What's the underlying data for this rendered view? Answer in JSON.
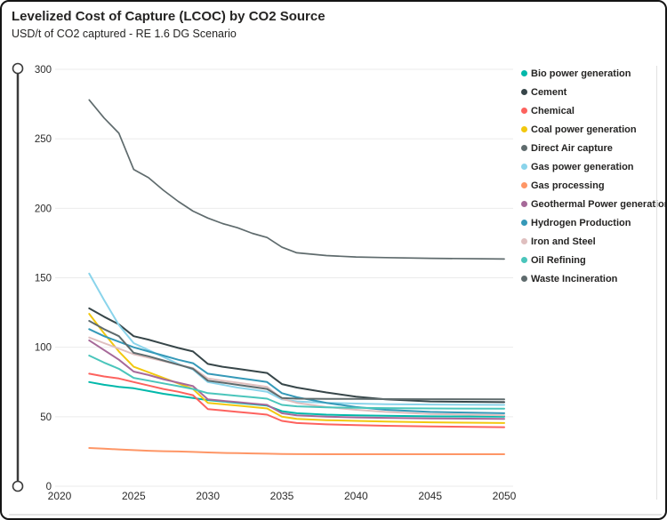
{
  "header": {
    "title": "Levelized Cost of Capture (LCOC) by CO2 Source",
    "subtitle": "USD/t of CO2 captured - RE 1.6 DG Scenario"
  },
  "chart_data": {
    "type": "line",
    "title": "Levelized Cost of Capture (LCOC) by CO2 Source",
    "subtitle": "USD/t of CO2 captured - RE 1.6 DG Scenario",
    "xlabel": "",
    "ylabel": "USD/t of CO2 captured",
    "xlim": [
      2020,
      2050
    ],
    "ylim": [
      0,
      300
    ],
    "x_ticks": [
      2020,
      2025,
      2030,
      2035,
      2040,
      2045,
      2050
    ],
    "y_ticks": [
      0,
      50,
      100,
      150,
      200,
      250,
      300
    ],
    "grid": "horizontal",
    "legend_position": "right",
    "x": [
      2022,
      2023,
      2024,
      2025,
      2026,
      2027,
      2028,
      2029,
      2030,
      2031,
      2032,
      2033,
      2034,
      2035,
      2036,
      2038,
      2040,
      2042,
      2045,
      2050
    ],
    "series": [
      {
        "name": "Bio power generation",
        "color": "#01B8AA",
        "values": [
          75,
          73,
          71.5,
          70.5,
          68.5,
          66.5,
          65,
          63.5,
          62,
          61,
          60,
          59,
          58,
          54,
          52.5,
          51.5,
          51,
          50.7,
          50.3,
          50
        ]
      },
      {
        "name": "Cement",
        "color": "#374649",
        "values": [
          128,
          122,
          116.5,
          108,
          105.5,
          102.5,
          99.5,
          97,
          88,
          86,
          84.5,
          83,
          81.5,
          73.5,
          71,
          67.5,
          64.5,
          62.5,
          61,
          60.5
        ]
      },
      {
        "name": "Chemical",
        "color": "#FD625E",
        "values": [
          81,
          79,
          77.5,
          75,
          72.5,
          70,
          68,
          65.5,
          55.5,
          54.5,
          53.5,
          52.5,
          51.5,
          47,
          45.5,
          44.5,
          44,
          43.5,
          43,
          42.5
        ]
      },
      {
        "name": "Coal power generation",
        "color": "#F2C80F",
        "values": [
          124,
          110,
          97,
          86,
          82,
          78,
          74,
          70,
          60,
          59,
          58,
          57,
          56,
          50,
          48.5,
          47.5,
          47,
          46.5,
          46,
          45.5
        ]
      },
      {
        "name": "Direct Air capture",
        "color": "#5F6B6D",
        "values": [
          278,
          265,
          254,
          228,
          222,
          213,
          205,
          198,
          193,
          189,
          186,
          182,
          179,
          172,
          168,
          166,
          165,
          164.5,
          164,
          163.5
        ]
      },
      {
        "name": "Gas power generation",
        "color": "#8AD4EB",
        "values": [
          153,
          134,
          116,
          103,
          98,
          93,
          88,
          84,
          75,
          73,
          71,
          69.5,
          68,
          62.5,
          61,
          60,
          59.5,
          59,
          58.8,
          58.5
        ]
      },
      {
        "name": "Gas processing",
        "color": "#FE9666",
        "values": [
          27.5,
          27,
          26.5,
          26,
          25.5,
          25.2,
          25,
          24.7,
          24.3,
          24,
          23.8,
          23.6,
          23.4,
          23.2,
          23.1,
          23,
          23,
          23,
          23,
          23
        ]
      },
      {
        "name": "Geothermal Power generation",
        "color": "#A66999",
        "values": [
          105,
          98,
          91,
          82.5,
          80,
          77,
          74.5,
          72,
          62.5,
          61.5,
          60.5,
          59.5,
          58.5,
          52.5,
          51,
          50,
          49.5,
          49.2,
          48.8,
          48.5
        ]
      },
      {
        "name": "Hydrogen Production",
        "color": "#3599B8",
        "values": [
          113,
          108,
          104,
          100,
          97,
          94,
          91,
          88.5,
          81,
          79.5,
          78,
          76.5,
          75,
          67,
          64,
          60,
          57,
          55,
          53.5,
          52.5
        ]
      },
      {
        "name": "Iron and Steel",
        "color": "#DFBFBF",
        "values": [
          107,
          103,
          99,
          95,
          92.5,
          90,
          87.5,
          85,
          77.5,
          76,
          74.5,
          73,
          71.5,
          63,
          60,
          57,
          55,
          53.5,
          52,
          51
        ]
      },
      {
        "name": "Oil Refining",
        "color": "#4AC5BB",
        "values": [
          94,
          89,
          84.5,
          78,
          76,
          74,
          72,
          70,
          67,
          66,
          65,
          64,
          63,
          58.5,
          57.5,
          56.8,
          56.4,
          56.2,
          56,
          55.8
        ]
      },
      {
        "name": "Waste Incineration",
        "color": "#5F6B6D",
        "values": [
          119,
          113,
          108,
          96,
          93.5,
          90.5,
          87.5,
          84.5,
          76,
          74.5,
          73,
          71.5,
          70,
          63.5,
          63,
          62.9,
          62.8,
          62.7,
          62.6,
          62.5
        ]
      }
    ]
  }
}
